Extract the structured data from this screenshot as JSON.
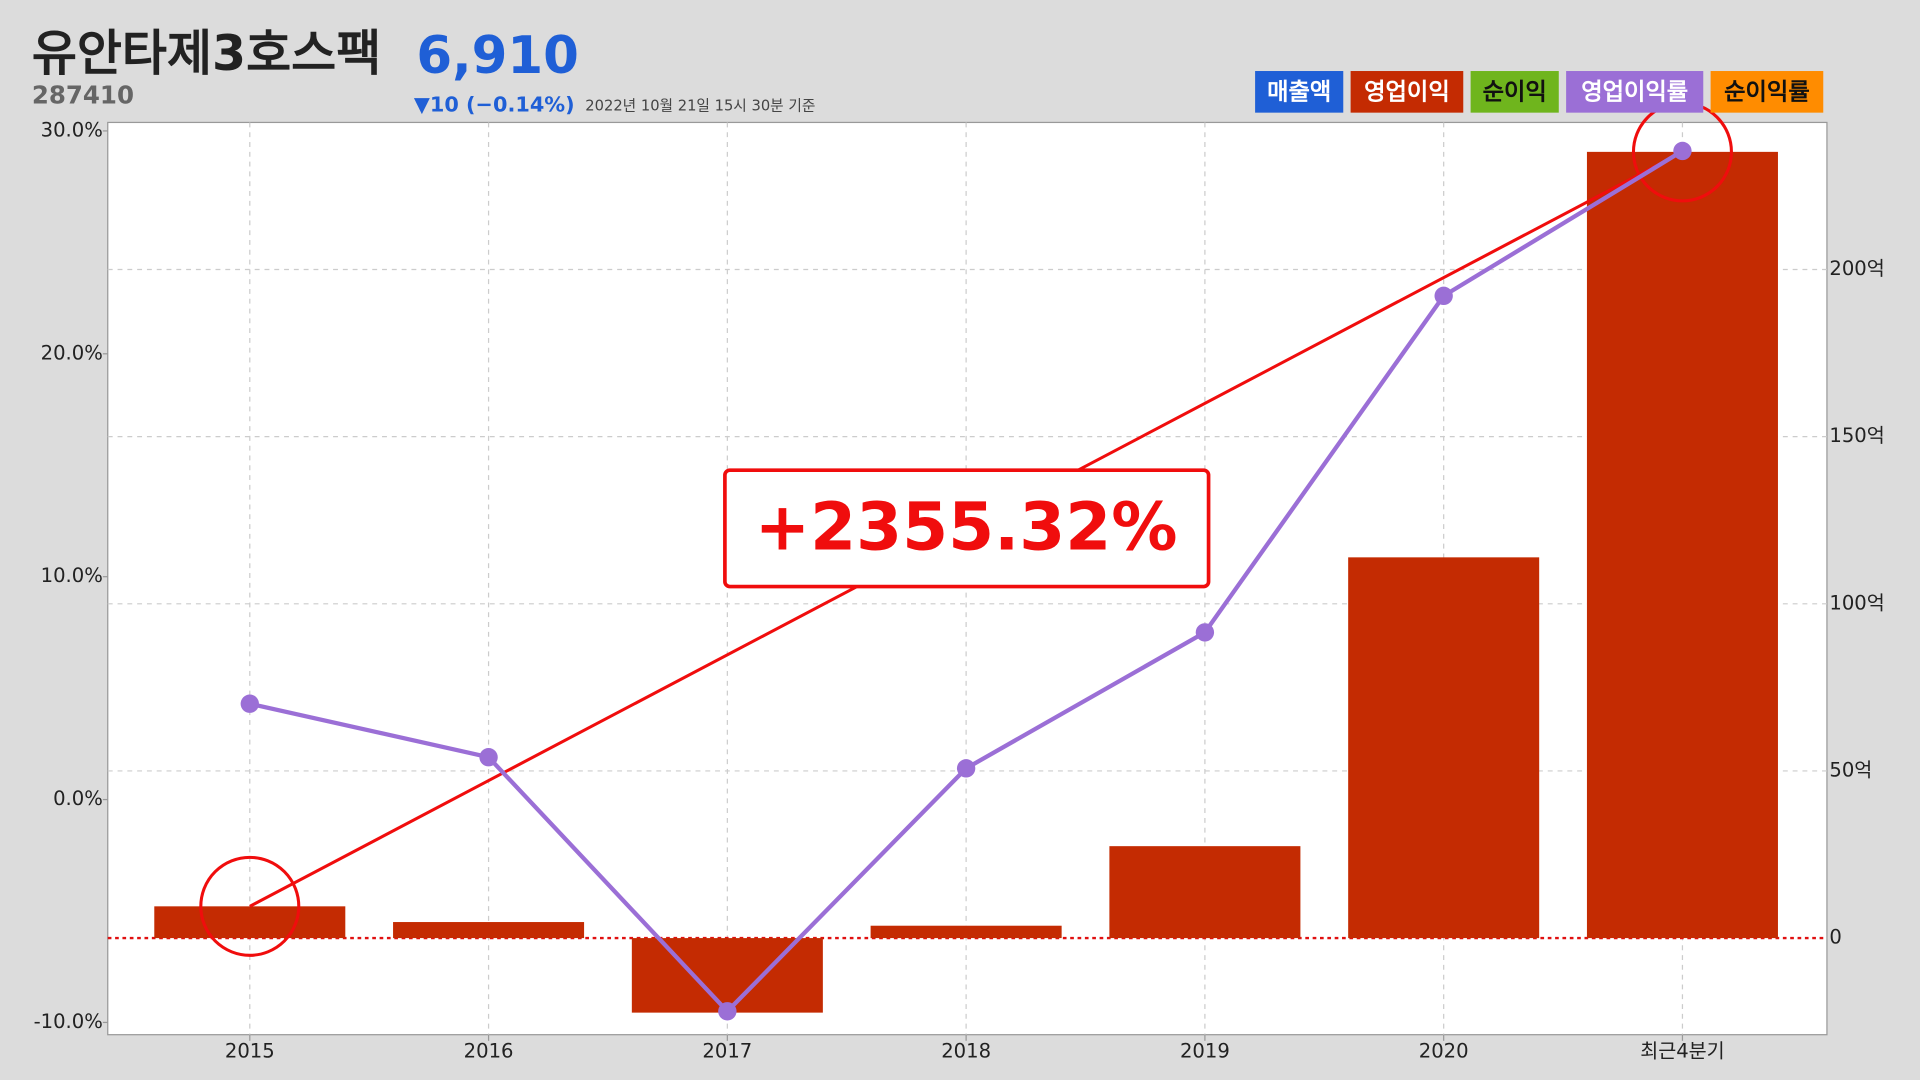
{
  "header": {
    "title": "유안타제3호스팩",
    "code": "287410",
    "price": "6,910",
    "change": "▼10 (−0.14%)",
    "timestamp": "2022년 10월 21일 15시 30분 기준"
  },
  "chart_data": {
    "type": "bar_line",
    "categories": [
      "2015",
      "2016",
      "2017",
      "2018",
      "2019",
      "2020",
      "최근4분기"
    ],
    "series": [
      {
        "name": "영업이익",
        "color": "#c42b02",
        "type": "bar",
        "axis": "y2",
        "values": [
          9.5,
          4.8,
          -22.3,
          3.7,
          27.5,
          113.9,
          235.2
        ]
      },
      {
        "name": "영업이익률",
        "color": "#9b6fd6",
        "type": "line",
        "axis": "y",
        "values": [
          4.3,
          1.9,
          -9.5,
          1.4,
          7.5,
          22.6,
          29.1
        ]
      }
    ],
    "other_legend": [
      {
        "name": "매출액",
        "color": "#1f5fd6"
      },
      {
        "name": "순이익",
        "color": "#6fb51d"
      },
      {
        "name": "순이익률",
        "color": "#ff8c00"
      }
    ],
    "ylim": [
      -10.55,
      30.38
    ],
    "yticks": [
      {
        "value": 30,
        "label": "30.0%"
      },
      {
        "value": 20,
        "label": "20.0%"
      },
      {
        "value": 10,
        "label": "10.0%"
      },
      {
        "value": 0,
        "label": "0.0%"
      },
      {
        "value": -10,
        "label": "-10.0%"
      }
    ],
    "y2lim": [
      -28.9,
      244
    ],
    "y2ticks": [
      {
        "value": 200,
        "label": "200억"
      },
      {
        "value": 150,
        "label": "150억"
      },
      {
        "value": 100,
        "label": "100억"
      },
      {
        "value": 50,
        "label": "50억"
      },
      0
    ],
    "grid": true,
    "annotation": "+2355.32%"
  }
}
